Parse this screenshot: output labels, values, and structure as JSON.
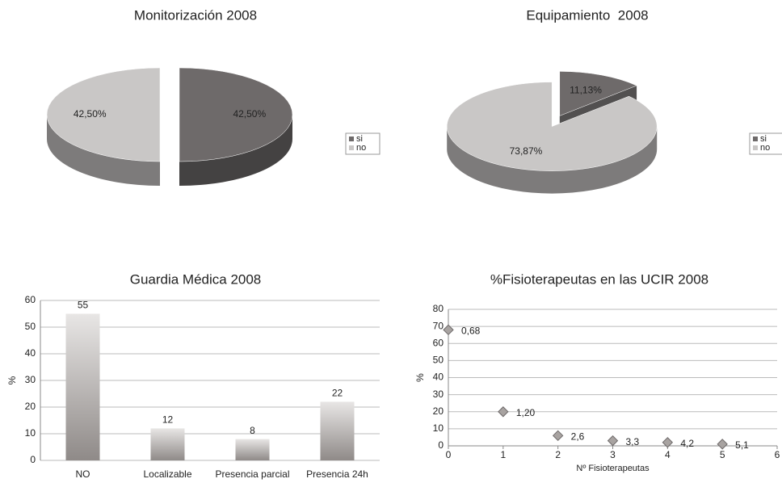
{
  "chart_data": [
    {
      "type": "pie",
      "title": "Monitorización 2008",
      "categories": [
        "si",
        "no"
      ],
      "values": [
        42.5,
        42.5
      ],
      "value_labels": [
        "42,50%",
        "42,50%"
      ],
      "colors": [
        "#6e6a6a",
        "#c9c7c6"
      ],
      "legend": "right"
    },
    {
      "type": "pie",
      "title": "Equipamiento  2008",
      "categories": [
        "si",
        "no"
      ],
      "values": [
        11.13,
        73.87
      ],
      "value_labels": [
        "11,13%",
        "73,87%"
      ],
      "colors": [
        "#6e6a6a",
        "#c9c7c6"
      ],
      "legend": "right"
    },
    {
      "type": "bar",
      "title": "Guardia Médica 2008",
      "categories": [
        "NO",
        "Localizable",
        "Presencia parcial",
        "Presencia 24h"
      ],
      "values": [
        55,
        12,
        8,
        22
      ],
      "color": "#8f8a88",
      "ylabel": "%",
      "ylim": [
        0,
        60
      ],
      "yticks": [
        0,
        10,
        20,
        30,
        40,
        50,
        60
      ],
      "grid": true
    },
    {
      "type": "scatter",
      "title": "%Fisioterapeutas en las UCIR 2008",
      "x": [
        0,
        1,
        2,
        3,
        4,
        5
      ],
      "values": [
        68,
        20,
        6,
        3,
        2,
        1
      ],
      "point_labels": [
        "0,68",
        "1,20",
        "2,6",
        "3,3",
        "4,2",
        "5,1"
      ],
      "color": "#a8a3a1",
      "xlabel": "Nº  Fisioterapeutas",
      "ylabel": "%",
      "xlim": [
        0,
        6
      ],
      "xticks": [
        0,
        1,
        2,
        3,
        4,
        5,
        6
      ],
      "ylim": [
        0,
        80
      ],
      "yticks": [
        0,
        10,
        20,
        30,
        40,
        50,
        60,
        70,
        80
      ],
      "grid": true
    }
  ]
}
